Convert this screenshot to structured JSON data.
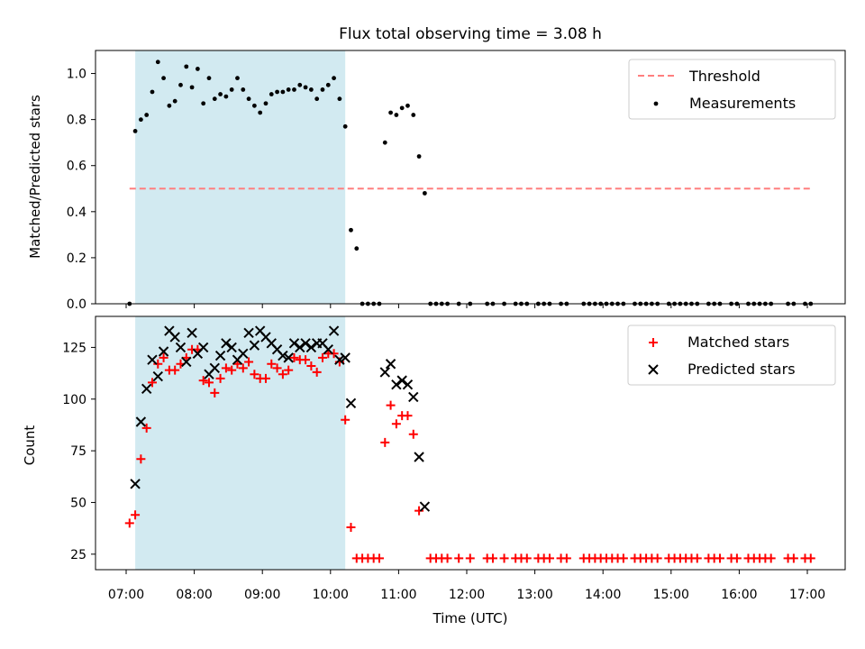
{
  "figure": {
    "title": "Flux total observing time = 3.08 h",
    "xlabel": "Time (UTC)",
    "x_ticks": [
      "07:00",
      "08:00",
      "09:00",
      "10:00",
      "11:00",
      "12:00",
      "13:00",
      "14:00",
      "15:00",
      "16:00",
      "17:00"
    ]
  },
  "colors": {
    "threshold": "#ff7f7f",
    "measurements": "#000000",
    "matched": "#ff0000",
    "predicted": "#000000",
    "span": "#add8e6"
  },
  "chart_data": [
    {
      "type": "scatter",
      "ylabel": "Matched/Predicted stars",
      "ylim": [
        0,
        1.1
      ],
      "yticks": [
        "0.0",
        "0.2",
        "0.4",
        "0.6",
        "0.8",
        "1.0"
      ],
      "shaded_span": [
        "07:08",
        "10:13"
      ],
      "legend": "top-right",
      "threshold": {
        "name": "Threshold",
        "y": 0.5,
        "x_range": [
          "07:03",
          "17:05"
        ]
      },
      "series": [
        {
          "name": "Measurements",
          "points": [
            [
              "07:03",
              0.0
            ],
            [
              "07:08",
              0.75
            ],
            [
              "07:13",
              0.8
            ],
            [
              "07:18",
              0.82
            ],
            [
              "07:23",
              0.92
            ],
            [
              "07:28",
              1.05
            ],
            [
              "07:33",
              0.98
            ],
            [
              "07:38",
              0.86
            ],
            [
              "07:43",
              0.88
            ],
            [
              "07:48",
              0.95
            ],
            [
              "07:53",
              1.03
            ],
            [
              "07:58",
              0.94
            ],
            [
              "08:03",
              1.02
            ],
            [
              "08:08",
              0.87
            ],
            [
              "08:13",
              0.98
            ],
            [
              "08:18",
              0.89
            ],
            [
              "08:23",
              0.91
            ],
            [
              "08:28",
              0.9
            ],
            [
              "08:33",
              0.93
            ],
            [
              "08:38",
              0.98
            ],
            [
              "08:43",
              0.93
            ],
            [
              "08:48",
              0.89
            ],
            [
              "08:53",
              0.86
            ],
            [
              "08:58",
              0.83
            ],
            [
              "09:03",
              0.87
            ],
            [
              "09:08",
              0.91
            ],
            [
              "09:13",
              0.92
            ],
            [
              "09:18",
              0.92
            ],
            [
              "09:23",
              0.93
            ],
            [
              "09:28",
              0.93
            ],
            [
              "09:33",
              0.95
            ],
            [
              "09:38",
              0.94
            ],
            [
              "09:43",
              0.93
            ],
            [
              "09:48",
              0.89
            ],
            [
              "09:53",
              0.93
            ],
            [
              "09:58",
              0.95
            ],
            [
              "10:03",
              0.98
            ],
            [
              "10:08",
              0.89
            ],
            [
              "10:13",
              0.77
            ],
            [
              "10:18",
              0.32
            ],
            [
              "10:23",
              0.24
            ],
            [
              "10:28",
              0.0
            ],
            [
              "10:33",
              0.0
            ],
            [
              "10:38",
              0.0
            ],
            [
              "10:43",
              0.0
            ],
            [
              "10:48",
              0.7
            ],
            [
              "10:53",
              0.83
            ],
            [
              "10:58",
              0.82
            ],
            [
              "11:03",
              0.85
            ],
            [
              "11:08",
              0.86
            ],
            [
              "11:13",
              0.82
            ],
            [
              "11:18",
              0.64
            ],
            [
              "11:23",
              0.48
            ],
            [
              "11:28",
              0.0
            ],
            [
              "11:33",
              0.0
            ],
            [
              "11:38",
              0.0
            ],
            [
              "11:43",
              0.0
            ],
            [
              "11:53",
              0.0
            ],
            [
              "12:03",
              0.0
            ],
            [
              "12:18",
              0.0
            ],
            [
              "12:23",
              0.0
            ],
            [
              "12:33",
              0.0
            ],
            [
              "12:43",
              0.0
            ],
            [
              "12:48",
              0.0
            ],
            [
              "12:53",
              0.0
            ],
            [
              "13:03",
              0.0
            ],
            [
              "13:08",
              0.0
            ],
            [
              "13:13",
              0.0
            ],
            [
              "13:23",
              0.0
            ],
            [
              "13:28",
              0.0
            ],
            [
              "13:43",
              0.0
            ],
            [
              "13:48",
              0.0
            ],
            [
              "13:53",
              0.0
            ],
            [
              "13:58",
              0.0
            ],
            [
              "14:03",
              0.0
            ],
            [
              "14:08",
              0.0
            ],
            [
              "14:13",
              0.0
            ],
            [
              "14:18",
              0.0
            ],
            [
              "14:28",
              0.0
            ],
            [
              "14:33",
              0.0
            ],
            [
              "14:38",
              0.0
            ],
            [
              "14:43",
              0.0
            ],
            [
              "14:48",
              0.0
            ],
            [
              "14:58",
              0.0
            ],
            [
              "15:03",
              0.0
            ],
            [
              "15:08",
              0.0
            ],
            [
              "15:13",
              0.0
            ],
            [
              "15:18",
              0.0
            ],
            [
              "15:23",
              0.0
            ],
            [
              "15:33",
              0.0
            ],
            [
              "15:38",
              0.0
            ],
            [
              "15:43",
              0.0
            ],
            [
              "15:53",
              0.0
            ],
            [
              "15:58",
              0.0
            ],
            [
              "16:08",
              0.0
            ],
            [
              "16:13",
              0.0
            ],
            [
              "16:18",
              0.0
            ],
            [
              "16:23",
              0.0
            ],
            [
              "16:28",
              0.0
            ],
            [
              "16:43",
              0.0
            ],
            [
              "16:48",
              0.0
            ],
            [
              "16:58",
              0.0
            ],
            [
              "17:03",
              0.0
            ]
          ]
        }
      ]
    },
    {
      "type": "scatter",
      "ylabel": "Count",
      "ylim": [
        17.5,
        140
      ],
      "yticks": [
        "25",
        "50",
        "75",
        "100",
        "125"
      ],
      "shaded_span": [
        "07:08",
        "10:13"
      ],
      "legend": "top-right",
      "series": [
        {
          "name": "Matched stars",
          "marker": "+",
          "points": [
            [
              "07:03",
              40
            ],
            [
              "07:08",
              44
            ],
            [
              "07:13",
              71
            ],
            [
              "07:18",
              86
            ],
            [
              "07:23",
              108
            ],
            [
              "07:28",
              117
            ],
            [
              "07:33",
              120
            ],
            [
              "07:38",
              114
            ],
            [
              "07:43",
              114
            ],
            [
              "07:48",
              117
            ],
            [
              "07:53",
              120
            ],
            [
              "07:58",
              124
            ],
            [
              "08:03",
              124
            ],
            [
              "08:08",
              109
            ],
            [
              "08:13",
              108
            ],
            [
              "08:18",
              103
            ],
            [
              "08:23",
              110
            ],
            [
              "08:28",
              115
            ],
            [
              "08:33",
              114
            ],
            [
              "08:38",
              117
            ],
            [
              "08:43",
              115
            ],
            [
              "08:48",
              118
            ],
            [
              "08:53",
              112
            ],
            [
              "08:58",
              110
            ],
            [
              "09:03",
              110
            ],
            [
              "09:08",
              117
            ],
            [
              "09:13",
              115
            ],
            [
              "09:18",
              112
            ],
            [
              "09:23",
              114
            ],
            [
              "09:28",
              120
            ],
            [
              "09:33",
              119
            ],
            [
              "09:38",
              119
            ],
            [
              "09:43",
              116
            ],
            [
              "09:48",
              113
            ],
            [
              "09:53",
              120
            ],
            [
              "09:58",
              122
            ],
            [
              "10:03",
              122
            ],
            [
              "10:08",
              118
            ],
            [
              "10:13",
              90
            ],
            [
              "10:18",
              38
            ],
            [
              "10:48",
              79
            ],
            [
              "10:53",
              97
            ],
            [
              "10:58",
              88
            ],
            [
              "11:03",
              92
            ],
            [
              "11:08",
              92
            ],
            [
              "11:13",
              83
            ],
            [
              "11:18",
              46
            ]
          ],
          "zero_points": [
            "10:23",
            "10:28",
            "10:33",
            "10:38",
            "10:43",
            "11:28",
            "11:33",
            "11:38",
            "11:43",
            "11:53",
            "12:03",
            "12:18",
            "12:23",
            "12:33",
            "12:43",
            "12:48",
            "12:53",
            "13:03",
            "13:08",
            "13:13",
            "13:23",
            "13:28",
            "13:43",
            "13:48",
            "13:53",
            "13:58",
            "14:03",
            "14:08",
            "14:13",
            "14:18",
            "14:28",
            "14:33",
            "14:38",
            "14:43",
            "14:48",
            "14:58",
            "15:03",
            "15:08",
            "15:13",
            "15:18",
            "15:23",
            "15:33",
            "15:38",
            "15:43",
            "15:53",
            "15:58",
            "16:08",
            "16:13",
            "16:18",
            "16:23",
            "16:28",
            "16:43",
            "16:48",
            "16:58",
            "17:03"
          ],
          "zero_value": 23
        },
        {
          "name": "Predicted stars",
          "marker": "x",
          "points": [
            [
              "07:08",
              59
            ],
            [
              "07:13",
              89
            ],
            [
              "07:18",
              105
            ],
            [
              "07:23",
              119
            ],
            [
              "07:28",
              111
            ],
            [
              "07:33",
              123
            ],
            [
              "07:38",
              133
            ],
            [
              "07:43",
              130
            ],
            [
              "07:48",
              125
            ],
            [
              "07:53",
              118
            ],
            [
              "07:58",
              132
            ],
            [
              "08:03",
              122
            ],
            [
              "08:08",
              125
            ],
            [
              "08:13",
              112
            ],
            [
              "08:18",
              115
            ],
            [
              "08:23",
              121
            ],
            [
              "08:28",
              127
            ],
            [
              "08:33",
              125
            ],
            [
              "08:38",
              119
            ],
            [
              "08:43",
              122
            ],
            [
              "08:48",
              132
            ],
            [
              "08:53",
              126
            ],
            [
              "08:58",
              133
            ],
            [
              "09:03",
              130
            ],
            [
              "09:08",
              127
            ],
            [
              "09:13",
              124
            ],
            [
              "09:18",
              121
            ],
            [
              "09:23",
              120
            ],
            [
              "09:28",
              127
            ],
            [
              "09:33",
              125
            ],
            [
              "09:38",
              127
            ],
            [
              "09:43",
              125
            ],
            [
              "09:48",
              127
            ],
            [
              "09:53",
              127
            ],
            [
              "09:58",
              124
            ],
            [
              "10:03",
              133
            ],
            [
              "10:08",
              119
            ],
            [
              "10:13",
              120
            ],
            [
              "10:18",
              98
            ],
            [
              "10:48",
              113
            ],
            [
              "10:53",
              117
            ],
            [
              "10:58",
              107
            ],
            [
              "11:03",
              109
            ],
            [
              "11:08",
              107
            ],
            [
              "11:13",
              101
            ],
            [
              "11:18",
              72
            ],
            [
              "11:23",
              48
            ]
          ]
        }
      ]
    }
  ]
}
